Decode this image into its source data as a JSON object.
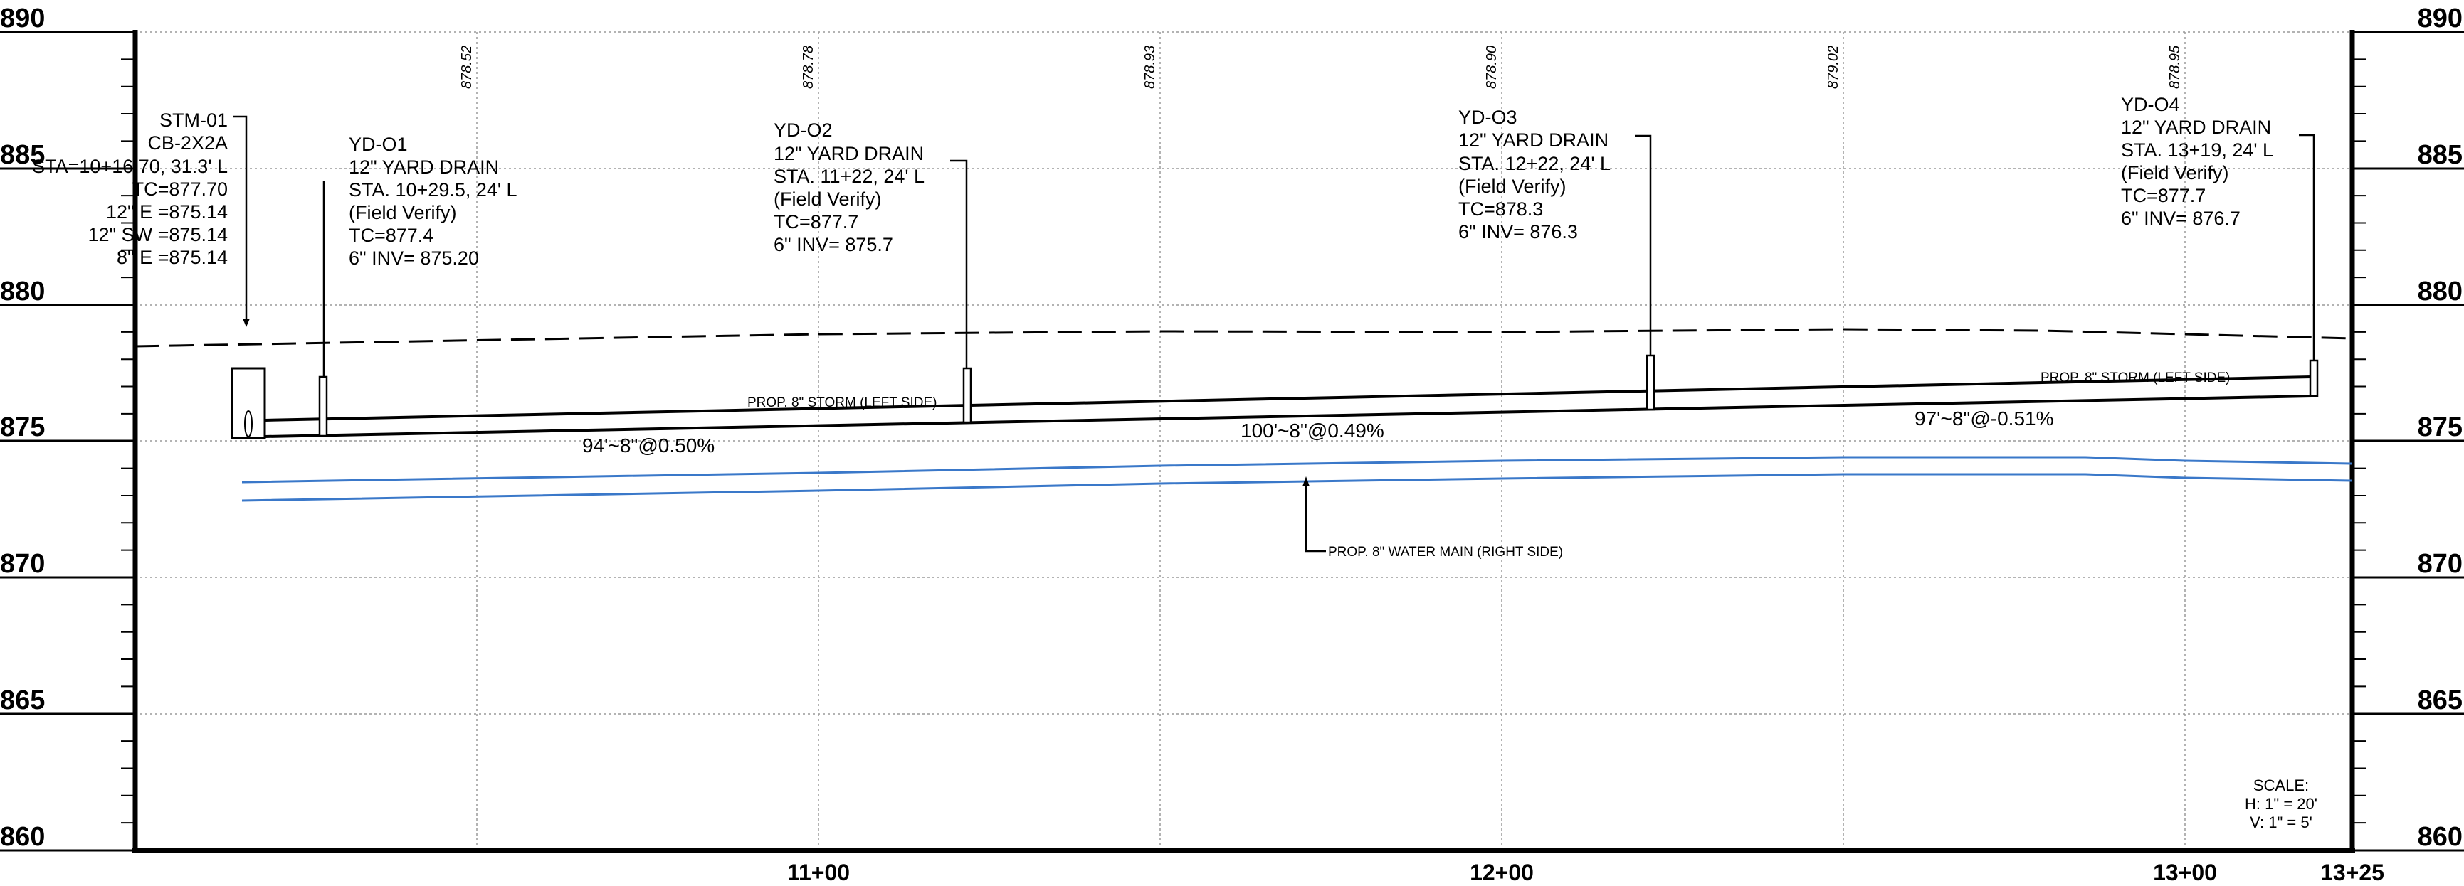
{
  "elevations": [
    "890",
    "885",
    "880",
    "875",
    "870",
    "865",
    "860"
  ],
  "stations": [
    "11+00",
    "12+00",
    "13+00",
    "13+25"
  ],
  "existing_grades": [
    "878.52",
    "878.78",
    "878.93",
    "878.90",
    "879.02",
    "878.95"
  ],
  "structures": [
    {
      "lines": [
        "STM-01",
        "CB-2X2A",
        "STA=10+16.70, 31.3' L",
        "TC=877.70",
        "12\" E =875.14",
        "12\" SW =875.14",
        "8\" E =875.14"
      ]
    },
    {
      "lines": [
        "YD-O1",
        "12\" YARD DRAIN",
        "STA. 10+29.5, 24' L",
        "(Field Verify)",
        "TC=877.4",
        "6\" INV= 875.20"
      ]
    },
    {
      "lines": [
        "YD-O2",
        "12\" YARD DRAIN",
        "STA. 11+22, 24' L",
        "(Field Verify)",
        "TC=877.7",
        "6\" INV= 875.7"
      ]
    },
    {
      "lines": [
        "YD-O3",
        "12\" YARD DRAIN",
        "STA. 12+22, 24' L",
        "(Field Verify)",
        "TC=878.3",
        "6\" INV= 876.3"
      ]
    },
    {
      "lines": [
        "YD-O4",
        "12\" YARD DRAIN",
        "STA. 13+19, 24' L",
        "(Field Verify)",
        "TC=877.7",
        "6\" INV= 876.7"
      ]
    }
  ],
  "pipes": {
    "storm_label_left": "PROP. 8\" STORM (LEFT SIDE)",
    "storm_label_right": "PROP. 8\" STORM (LEFT SIDE)",
    "water_label": "PROP. 8\" WATER MAIN (RIGHT SIDE)",
    "segments": [
      "94'~8\"@0.50%",
      "100'~8\"@0.49%",
      "97'~8\"@-0.51%"
    ]
  },
  "scale": [
    "SCALE:",
    "H: 1\" = 20'",
    "V: 1\" = 5'"
  ],
  "colors": {
    "line": "#000000",
    "water_main": "#3a78c9",
    "grid": "#9a9a9a"
  }
}
